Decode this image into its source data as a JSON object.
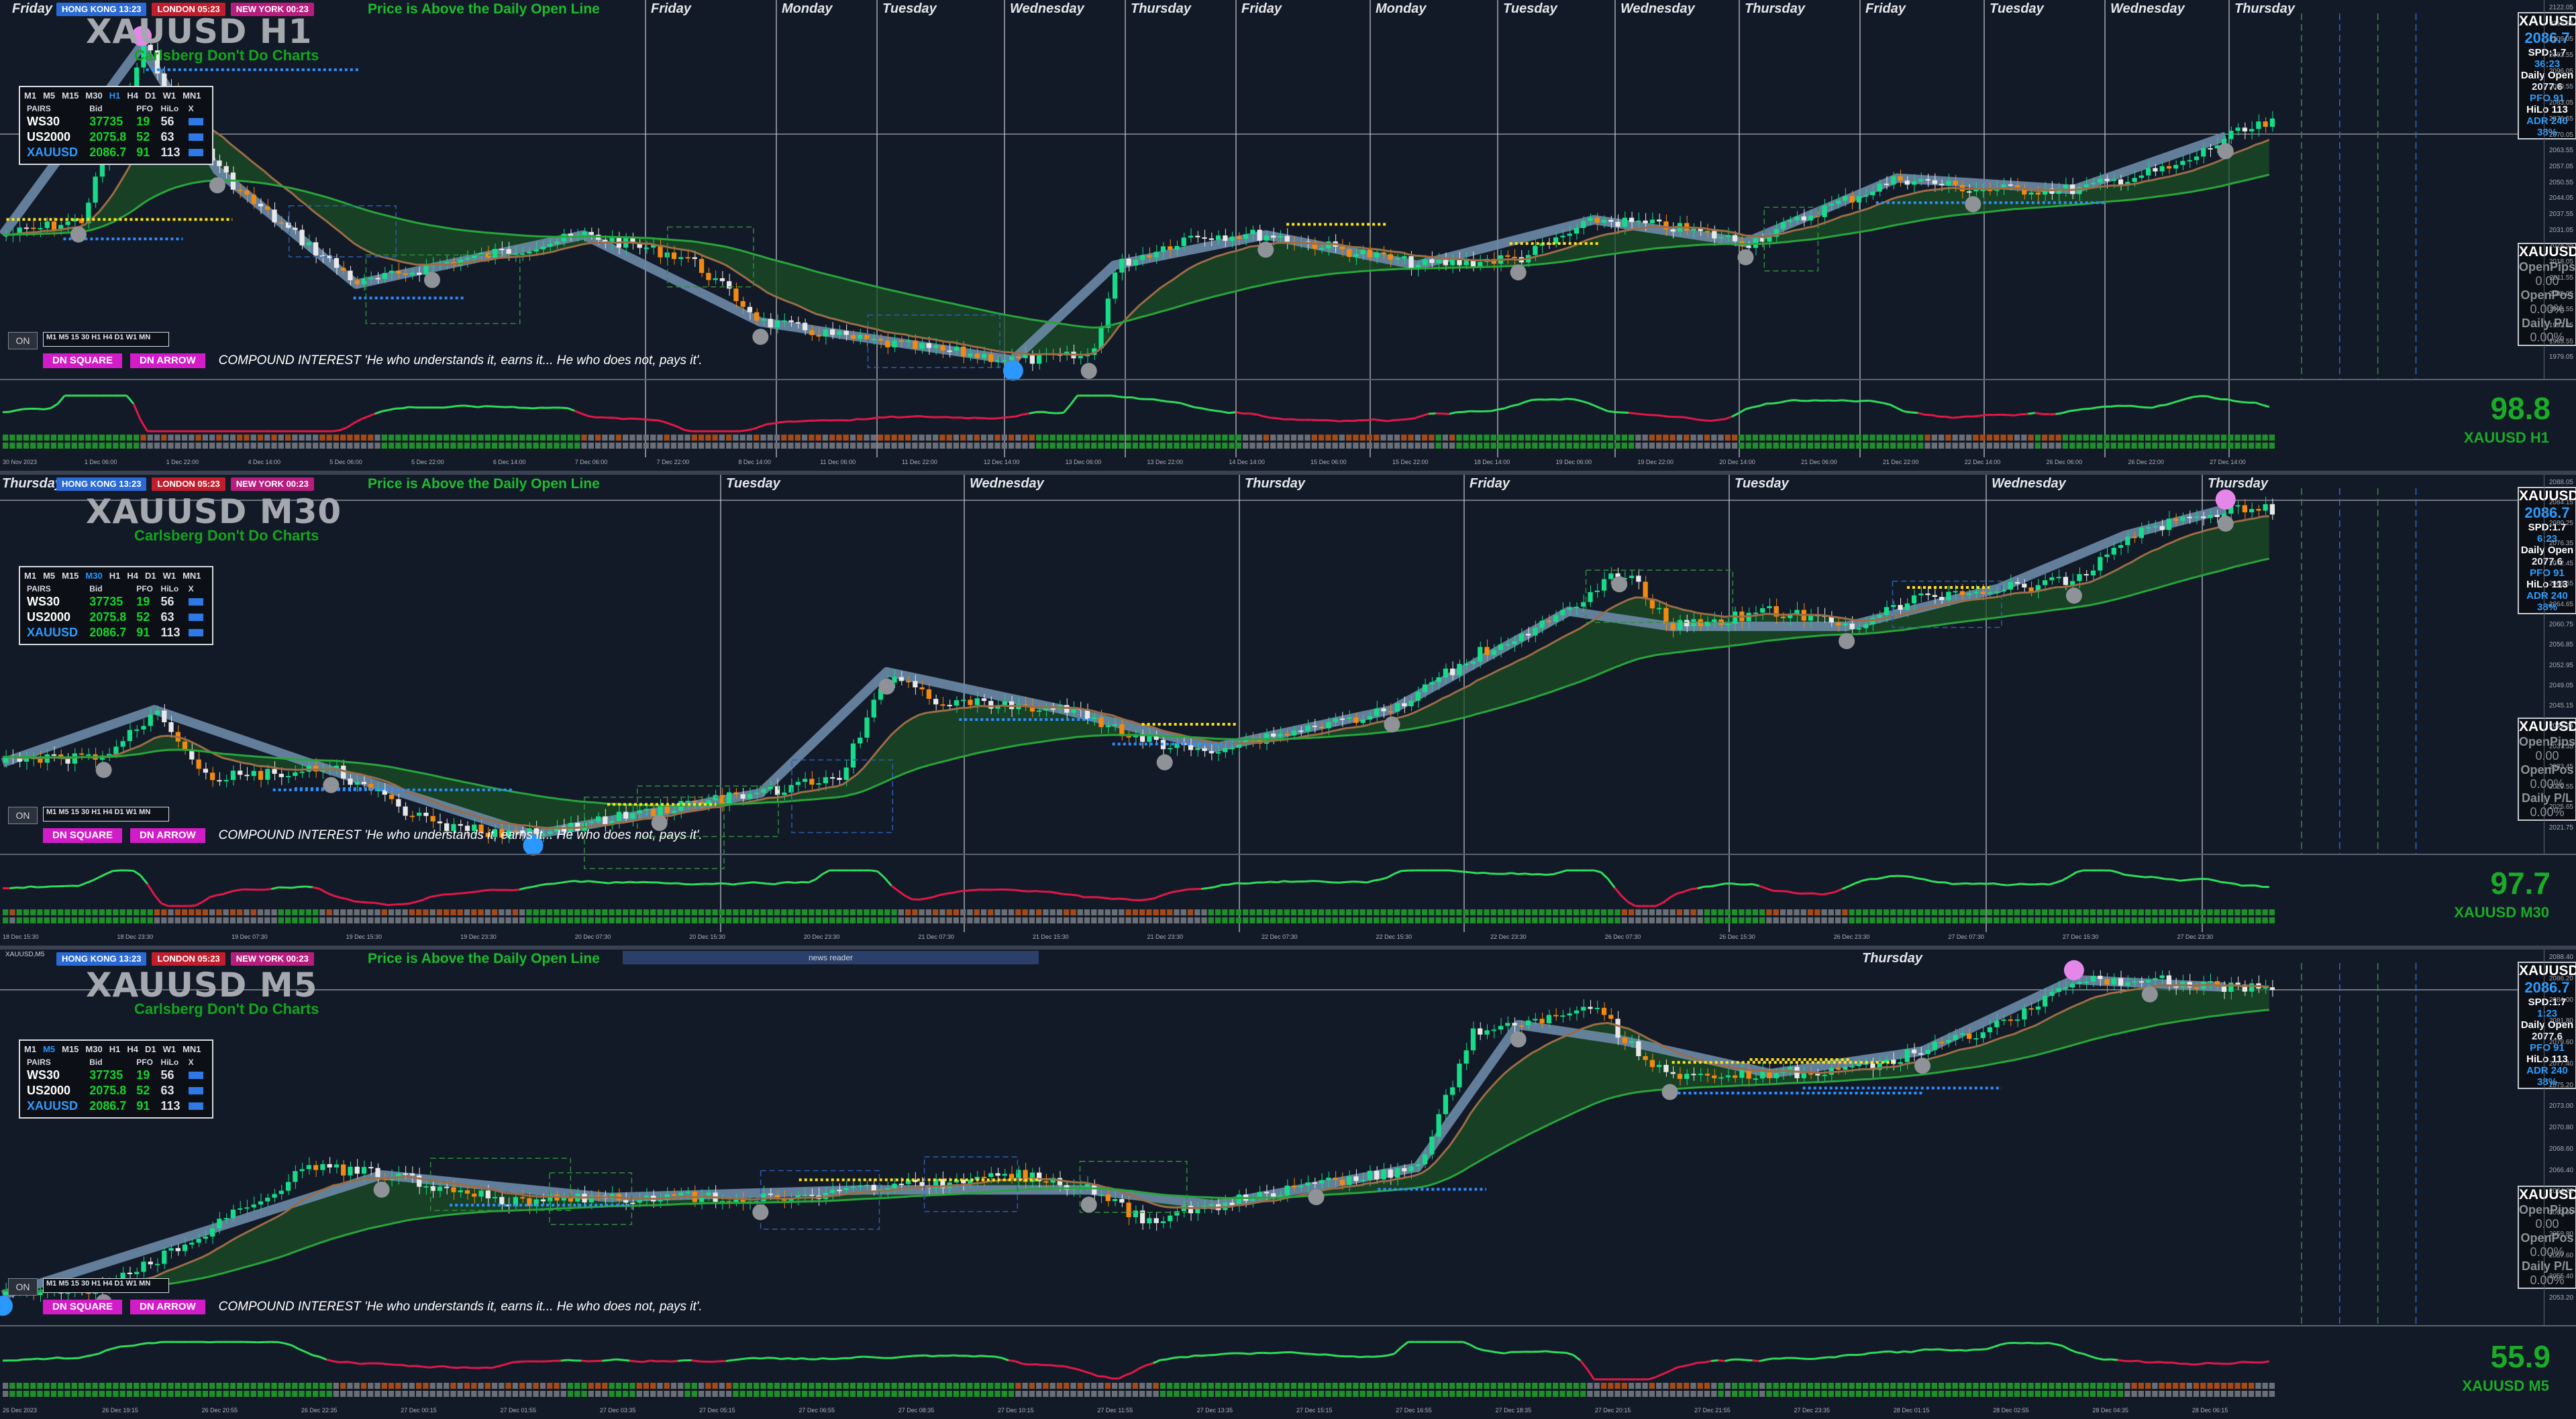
{
  "panes": [
    {
      "id": "h1",
      "title": "XAUUSD H1",
      "tagline": "Carlsberg Don't Do Charts",
      "window_label": "",
      "sessions": [
        {
          "label": "HONG KONG 13:23"
        },
        {
          "label": "LONDON 05:23"
        },
        {
          "label": "NEW YORK 00:23"
        }
      ],
      "daily_open_text": "Price is Above the Daily Open Line",
      "day_labels": [
        "Friday",
        "Friday",
        "Monday",
        "Tuesday",
        "Wednesday",
        "Thursday",
        "Friday",
        "Monday",
        "Tuesday",
        "Wednesday",
        "Thursday",
        "Friday",
        "Tuesday",
        "Wednesday",
        "Thursday"
      ],
      "timeframes": [
        "M1",
        "M5",
        "M15",
        "M30",
        "H1",
        "H4",
        "D1",
        "W1",
        "MN1"
      ],
      "selected_tf": "H1",
      "pairs_headers": [
        "PAIRS",
        "Bid",
        "PFO",
        "HiLo",
        "X"
      ],
      "pairs": [
        {
          "name": "WS30",
          "bid": "37735",
          "pfo": "19",
          "hilo": "56"
        },
        {
          "name": "US2000",
          "bid": "2075.8",
          "pfo": "52",
          "hilo": "63"
        },
        {
          "name": "XAUUSD",
          "bid": "2086.7",
          "pfo": "91",
          "hilo": "113"
        }
      ],
      "mini_tf": "M1 M5 15 30 H1 H4 D1 W1 MN",
      "on_label": "ON",
      "dn_square": "DN SQUARE",
      "dn_arrow": "DN ARROW",
      "compound": "COMPOUND INTEREST 'He who understands it, earns it... He who does not, pays it'.",
      "info": {
        "symbol": "XAUUSD",
        "price": "2086.7",
        "spd": "SPD:1.7",
        "timer": "36:23",
        "daily_open_label": "Daily Open",
        "daily_open": "2077.6",
        "pfo": "PFO 91",
        "hilo": "HiLo 113",
        "adr": "ADR 240",
        "adr_pct": "38%"
      },
      "pos": {
        "symbol": "XAUUSD",
        "open_pips_label": "OpenPips",
        "open_pips": "0.00",
        "open_pos_label": "OpenPos",
        "open_pos": "0.00%",
        "daily_pl_label": "Daily P/L",
        "daily_pl": "0.00%"
      },
      "big_value": "98.8",
      "big_symbol": "XAUUSD H1",
      "price_scale": [
        "2122.05",
        "2115.55",
        "2109.05",
        "2102.55",
        "2096.05",
        "2089.55",
        "2083.05",
        "2076.55",
        "2070.05",
        "2063.55",
        "2057.05",
        "2050.55",
        "2044.05",
        "2037.55",
        "2031.05",
        "2024.55",
        "2018.05",
        "2011.55",
        "2005.05",
        "1998.55",
        "1992.05",
        "1985.55",
        "1979.05"
      ],
      "dates": [
        "30 Nov 2023",
        "1 Dec 06:00",
        "1 Dec 22:00",
        "4 Dec 14:00",
        "5 Dec 06:00",
        "5 Dec 22:00",
        "6 Dec 14:00",
        "7 Dec 06:00",
        "7 Dec 22:00",
        "8 Dec 14:00",
        "11 Dec 06:00",
        "11 Dec 22:00",
        "12 Dec 14:00",
        "13 Dec 06:00",
        "13 Dec 22:00",
        "14 Dec 14:00",
        "15 Dec 06:00",
        "15 Dec 22:00",
        "18 Dec 14:00",
        "19 Dec 06:00",
        "19 Dec 22:00",
        "20 Dec 14:00",
        "21 Dec 06:00",
        "21 Dec 22:00",
        "22 Dec 14:00",
        "26 Dec 06:00",
        "26 Dec 22:00",
        "27 Dec 14:00"
      ]
    },
    {
      "id": "m30",
      "title": "XAUUSD M30",
      "tagline": "Carlsberg Don't Do Charts",
      "window_label": "",
      "sessions": [
        {
          "label": "HONG KONG 13:23"
        },
        {
          "label": "LONDON 05:23"
        },
        {
          "label": "NEW YORK 00:23"
        }
      ],
      "daily_open_text": "Price is Above the Daily Open Line",
      "day_labels": [
        "Thursday",
        "Tuesday",
        "Wednesday",
        "Thursday",
        "Friday",
        "Tuesday",
        "Wednesday",
        "Thursday"
      ],
      "timeframes": [
        "M1",
        "M5",
        "M15",
        "M30",
        "H1",
        "H4",
        "D1",
        "W1",
        "MN1"
      ],
      "selected_tf": "M30",
      "pairs_headers": [
        "PAIRS",
        "Bid",
        "PFO",
        "HiLo",
        "X"
      ],
      "pairs": [
        {
          "name": "WS30",
          "bid": "37735",
          "pfo": "19",
          "hilo": "56"
        },
        {
          "name": "US2000",
          "bid": "2075.8",
          "pfo": "52",
          "hilo": "63"
        },
        {
          "name": "XAUUSD",
          "bid": "2086.7",
          "pfo": "91",
          "hilo": "113"
        }
      ],
      "mini_tf": "M1 M5 15 30 H1 H4 D1 W1 MN",
      "on_label": "ON",
      "dn_square": "DN SQUARE",
      "dn_arrow": "DN ARROW",
      "compound": "COMPOUND INTEREST 'He who understands it, earns it... He who does not, pays it'.",
      "info": {
        "symbol": "XAUUSD",
        "price": "2086.7",
        "spd": "SPD:1.7",
        "timer": "6:23",
        "daily_open_label": "Daily Open",
        "daily_open": "2077.6",
        "pfo": "PFO 91",
        "hilo": "HiLo 113",
        "adr": "ADR 240",
        "adr_pct": "38%"
      },
      "pos": {
        "symbol": "XAUUSD",
        "open_pips_label": "OpenPips",
        "open_pips": "0.00",
        "open_pos_label": "OpenPos",
        "open_pos": "0.00%",
        "daily_pl_label": "Daily P/L",
        "daily_pl": "0.00%"
      },
      "big_value": "97.7",
      "big_symbol": "XAUUSD M30",
      "price_scale": [
        "2088.05",
        "2084.15",
        "2080.25",
        "2076.35",
        "2072.45",
        "2068.55",
        "2064.65",
        "2060.75",
        "2056.85",
        "2052.95",
        "2049.05",
        "2045.15",
        "2041.25",
        "2037.35",
        "2033.45",
        "2029.55",
        "2025.65",
        "2021.75"
      ],
      "dates": [
        "18 Dec 15:30",
        "18 Dec 23:30",
        "19 Dec 07:30",
        "19 Dec 15:30",
        "19 Dec 23:30",
        "20 Dec 07:30",
        "20 Dec 15:30",
        "20 Dec 23:30",
        "21 Dec 07:30",
        "21 Dec 15:30",
        "21 Dec 23:30",
        "22 Dec 07:30",
        "22 Dec 15:30",
        "22 Dec 23:30",
        "26 Dec 07:30",
        "26 Dec 15:30",
        "26 Dec 23:30",
        "27 Dec 07:30",
        "27 Dec 15:30",
        "27 Dec 23:30"
      ]
    },
    {
      "id": "m5",
      "title": "XAUUSD M5",
      "tagline": "Carlsberg Don't Do Charts",
      "window_label": "XAUUSD,M5",
      "sessions": [
        {
          "label": "HONG KONG 13:23"
        },
        {
          "label": "LONDON 05:23"
        },
        {
          "label": "NEW YORK 00:23"
        }
      ],
      "daily_open_text": "Price is Above the Daily Open Line",
      "news_reader": "news reader",
      "day_labels": [
        "Thursday"
      ],
      "timeframes": [
        "M1",
        "M5",
        "M15",
        "M30",
        "H1",
        "H4",
        "D1",
        "W1",
        "MN1"
      ],
      "selected_tf": "M5",
      "pairs_headers": [
        "PAIRS",
        "Bid",
        "PFO",
        "HiLo",
        "X"
      ],
      "pairs": [
        {
          "name": "WS30",
          "bid": "37735",
          "pfo": "19",
          "hilo": "56"
        },
        {
          "name": "US2000",
          "bid": "2075.8",
          "pfo": "52",
          "hilo": "63"
        },
        {
          "name": "XAUUSD",
          "bid": "2086.7",
          "pfo": "91",
          "hilo": "113"
        }
      ],
      "mini_tf": "M1 M5 15 30 H1 H4 D1 W1 MN",
      "on_label": "ON",
      "dn_square": "DN SQUARE",
      "dn_arrow": "DN ARROW",
      "compound": "COMPOUND INTEREST 'He who understands it, earns it... He who does not, pays it'.",
      "info": {
        "symbol": "XAUUSD",
        "price": "2086.7",
        "spd": "SPD:1.7",
        "timer": "1:23",
        "daily_open_label": "Daily Open",
        "daily_open": "2077.6",
        "pfo": "PFO 91",
        "hilo": "HiLo 113",
        "adr": "ADR 240",
        "adr_pct": "38%"
      },
      "pos": {
        "symbol": "XAUUSD",
        "open_pips_label": "OpenPips",
        "open_pips": "0.00",
        "open_pos_label": "OpenPos",
        "open_pos": "0.00%",
        "daily_pl_label": "Daily P/L",
        "daily_pl": "0.00%"
      },
      "big_value": "55.9",
      "big_symbol": "XAUUSD M5",
      "price_scale": [
        "2088.40",
        "2086.20",
        "2084.00",
        "2081.80",
        "2079.60",
        "2077.40",
        "2075.20",
        "2073.00",
        "2070.80",
        "2068.60",
        "2066.40",
        "2064.20",
        "2062.00",
        "2059.80",
        "2057.60",
        "2055.40",
        "2053.20"
      ],
      "dates": [
        "26 Dec 2023",
        "26 Dec 19:15",
        "26 Dec 20:55",
        "26 Dec 22:35",
        "27 Dec 00:15",
        "27 Dec 01:55",
        "27 Dec 03:35",
        "27 Dec 05:15",
        "27 Dec 06:55",
        "27 Dec 08:35",
        "27 Dec 10:15",
        "27 Dec 11:55",
        "27 Dec 13:35",
        "27 Dec 15:15",
        "27 Dec 16:55",
        "27 Dec 18:35",
        "27 Dec 20:15",
        "27 Dec 21:55",
        "27 Dec 23:35",
        "28 Dec 01:15",
        "28 Dec 02:55",
        "28 Dec 04:35",
        "28 Dec 06:15"
      ]
    }
  ],
  "colors": {
    "background": "#131a27",
    "bull": "#16dc8a",
    "bear": "#e8e8e8",
    "orange": "#f28a11",
    "zigzag": "#6c8aa7",
    "ema_fill": "#1b4d25",
    "osc_green": "#2edc5b",
    "osc_red": "#e21748",
    "pivot_magenta": "#e487e8",
    "pivot_blue": "#2a98ff",
    "pivot_grey": "#8f9398",
    "yellow_level": "#ffe414",
    "blue_level": "#2d8eff"
  }
}
